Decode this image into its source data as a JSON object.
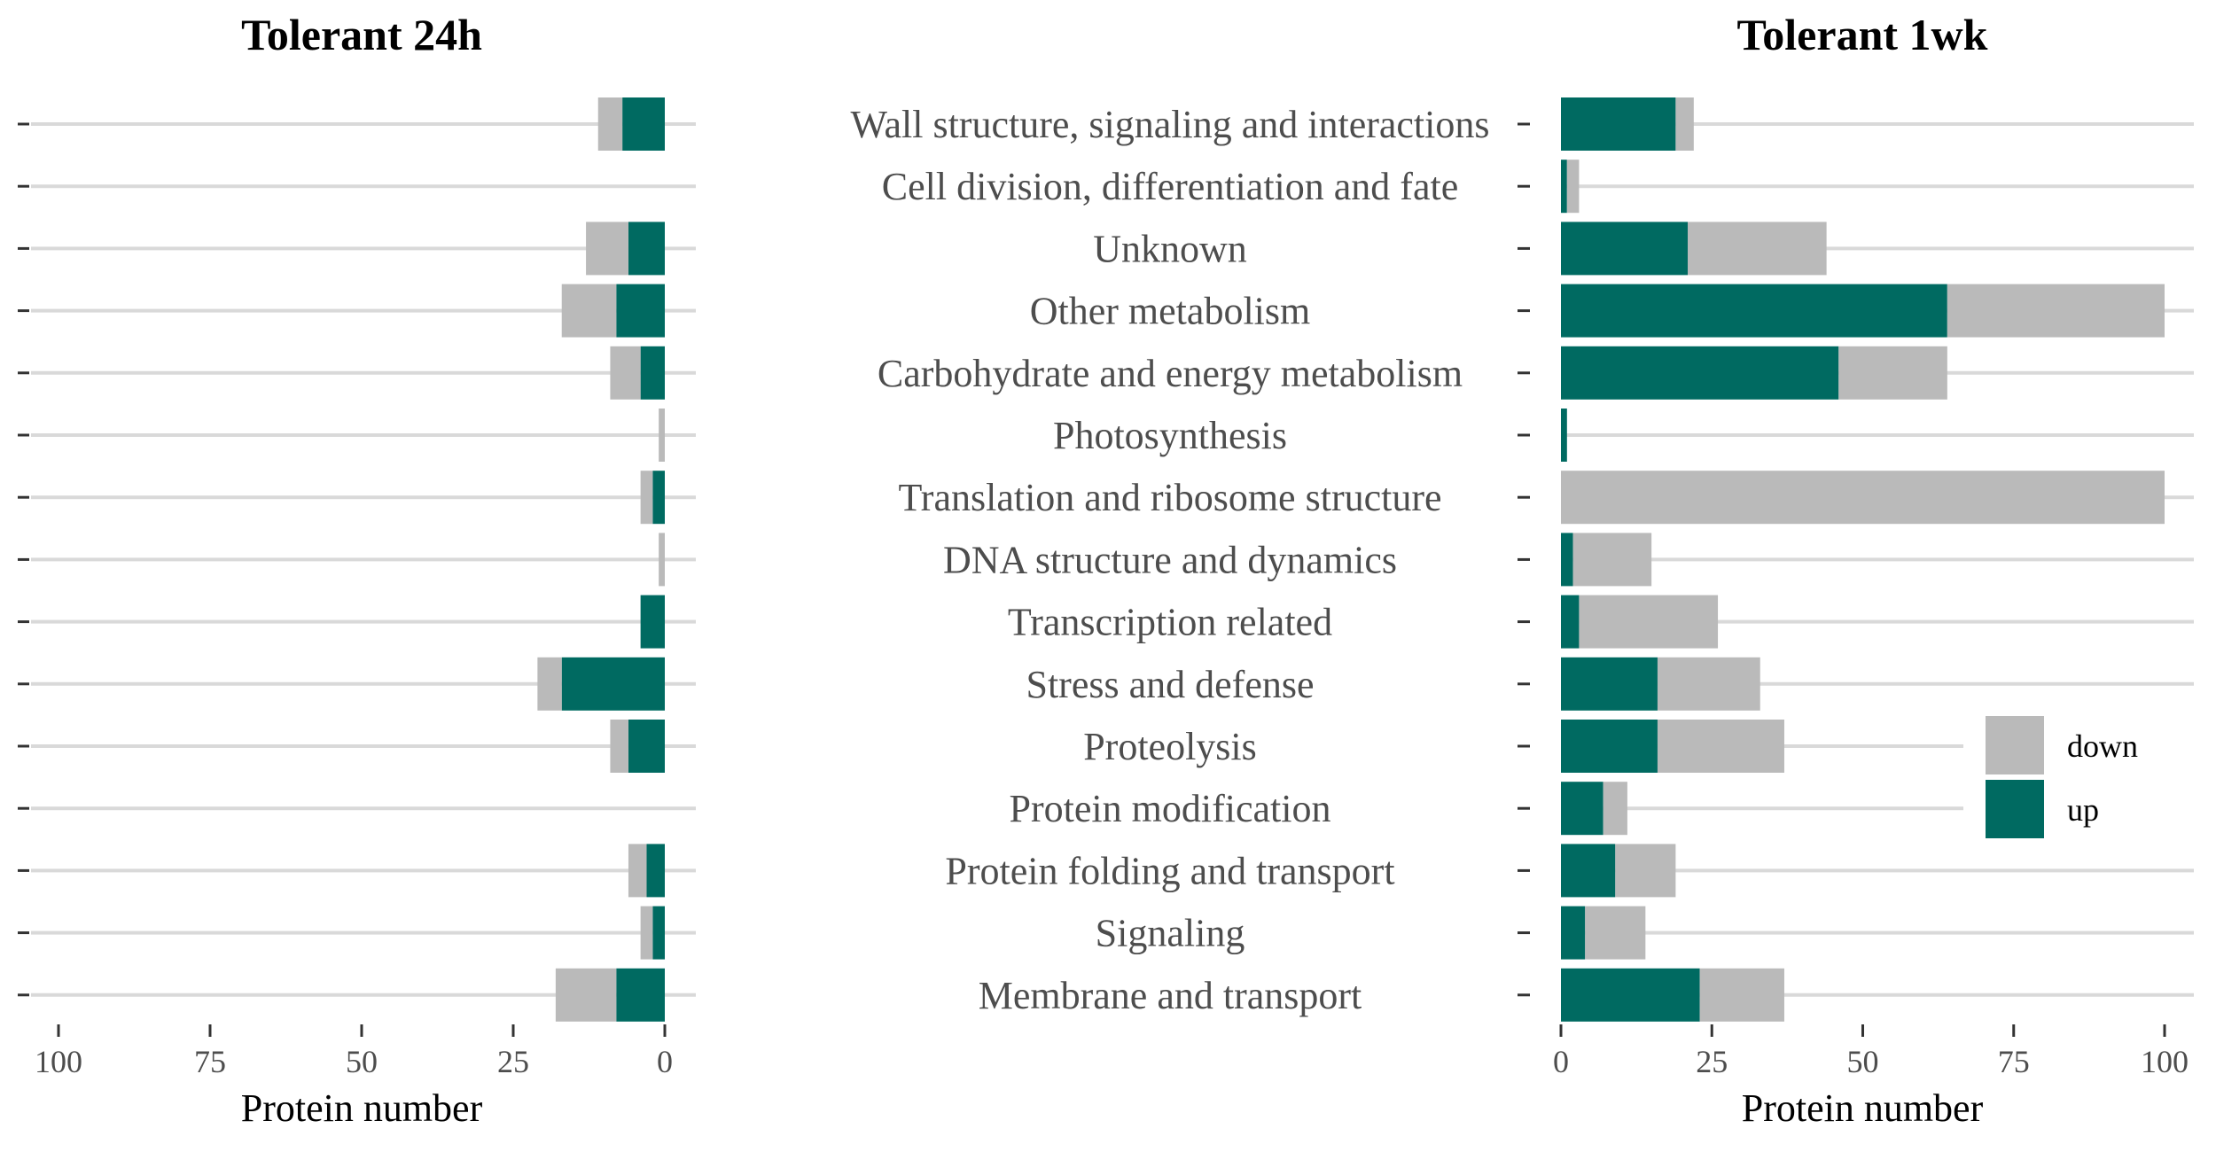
{
  "chart_data": [
    {
      "type": "bar",
      "orientation": "horizontal",
      "stacked": true,
      "reversed_x": true,
      "title": "Tolerant 24h",
      "xlabel": "Protein number",
      "xlim": [
        100,
        0
      ],
      "xticks": [
        100,
        75,
        50,
        25,
        0
      ],
      "categories": [
        "Wall structure, signaling and interactions",
        "Cell division, differentiation and fate",
        "Unknown",
        "Other metabolism",
        "Carbohydrate and energy metabolism",
        "Photosynthesis",
        "Translation and ribosome structure",
        "DNA structure and dynamics",
        "Transcription related",
        "Stress and defense",
        "Proteolysis",
        "Protein modification",
        "Protein folding and transport",
        "Signaling",
        "Membrane and transport"
      ],
      "series": [
        {
          "name": "up",
          "color": "#006a61",
          "values": [
            7,
            0,
            6,
            8,
            4,
            0,
            2,
            0,
            4,
            17,
            6,
            0,
            3,
            2,
            8
          ]
        },
        {
          "name": "down",
          "color": "#bababa",
          "values": [
            4,
            0,
            7,
            9,
            5,
            1,
            2,
            1,
            0,
            4,
            3,
            0,
            3,
            2,
            10
          ]
        }
      ]
    },
    {
      "type": "bar",
      "orientation": "horizontal",
      "stacked": true,
      "title": "Tolerant 1wk",
      "xlabel": "Protein number",
      "xlim": [
        0,
        100
      ],
      "xticks": [
        0,
        25,
        50,
        75,
        100
      ],
      "categories": [
        "Wall structure, signaling and interactions",
        "Cell division, differentiation and fate",
        "Unknown",
        "Other metabolism",
        "Carbohydrate and energy metabolism",
        "Photosynthesis",
        "Translation and ribosome structure",
        "DNA structure and dynamics",
        "Transcription related",
        "Stress and defense",
        "Proteolysis",
        "Protein modification",
        "Protein folding and transport",
        "Signaling",
        "Membrane and transport"
      ],
      "series": [
        {
          "name": "up",
          "color": "#006a61",
          "values": [
            19,
            1,
            21,
            64,
            46,
            1,
            0,
            2,
            3,
            16,
            16,
            7,
            9,
            4,
            23
          ]
        },
        {
          "name": "down",
          "color": "#bababa",
          "values": [
            3,
            2,
            23,
            36,
            18,
            0,
            100,
            13,
            23,
            17,
            21,
            4,
            10,
            10,
            14
          ]
        }
      ],
      "legend": {
        "position": "right",
        "items": [
          {
            "label": "down",
            "color": "#bababa"
          },
          {
            "label": "up",
            "color": "#006a61"
          }
        ]
      }
    }
  ]
}
